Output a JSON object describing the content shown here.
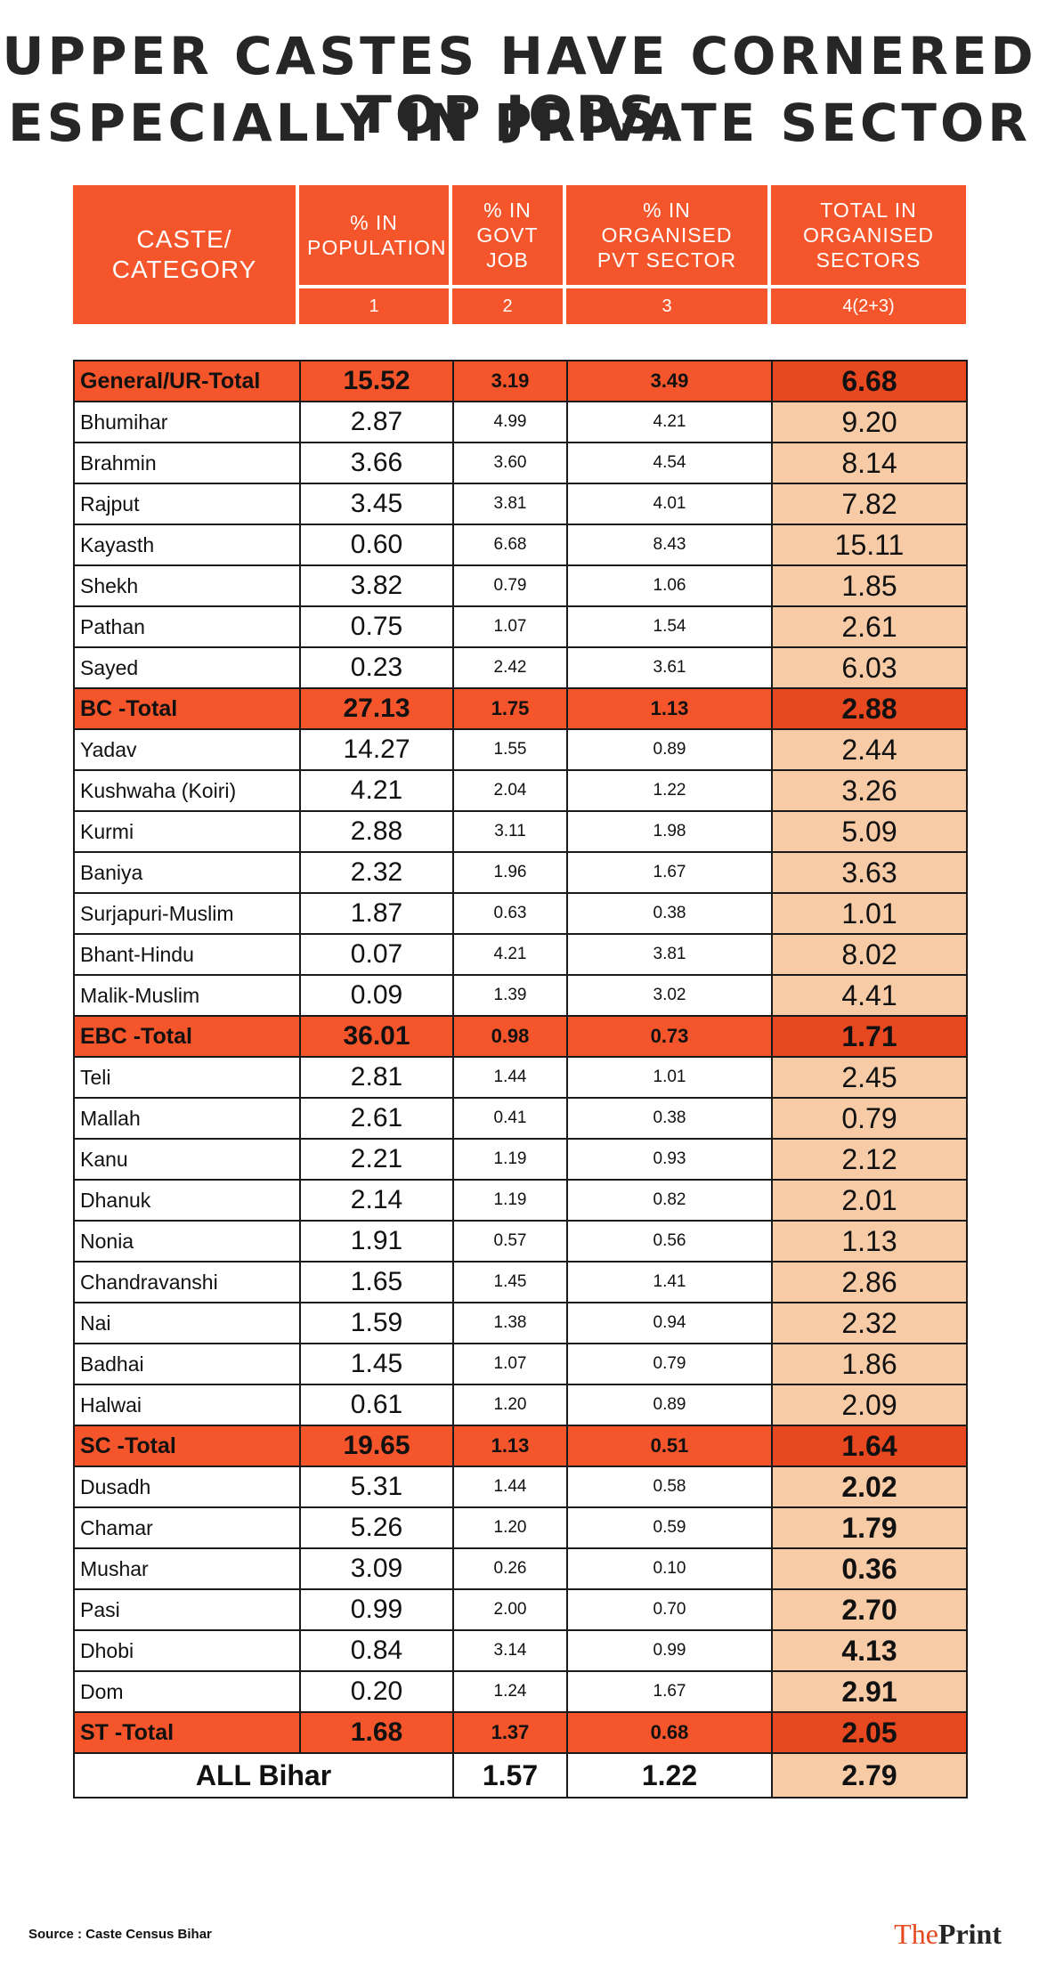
{
  "title": [
    "UPPER CASTES HAVE CORNERED TOP JOBS,",
    "ESPECIALLY IN PRIVATE SECTOR"
  ],
  "colors": {
    "header": "#f4552a",
    "total_row": "#f4552a",
    "total_cell": "#e8481f",
    "peach": "#f8cba7"
  },
  "chart_data": {
    "type": "table",
    "columns": [
      {
        "label": "CASTE/ CATEGORY",
        "number": ""
      },
      {
        "label": "% IN POPULATION",
        "number": "1"
      },
      {
        "label": "% IN GOVT JOB",
        "number": "2"
      },
      {
        "label": "% IN ORGANISED PVT SECTOR",
        "number": "3"
      },
      {
        "label": "TOTAL IN ORGANISED SECTORS",
        "number": "4(2+3)"
      }
    ],
    "rows": [
      {
        "name": "General/UR-Total",
        "pop": "15.52",
        "gov": "3.19",
        "pvt": "3.49",
        "tot": "6.68",
        "kind": "total"
      },
      {
        "name": "Bhumihar",
        "pop": "2.87",
        "gov": "4.99",
        "pvt": "4.21",
        "tot": "9.20"
      },
      {
        "name": "Brahmin",
        "pop": "3.66",
        "gov": "3.60",
        "pvt": "4.54",
        "tot": "8.14"
      },
      {
        "name": "Rajput",
        "pop": "3.45",
        "gov": "3.81",
        "pvt": "4.01",
        "tot": "7.82"
      },
      {
        "name": "Kayasth",
        "pop": "0.60",
        "gov": "6.68",
        "pvt": "8.43",
        "tot": "15.11"
      },
      {
        "name": "Shekh",
        "pop": "3.82",
        "gov": "0.79",
        "pvt": "1.06",
        "tot": "1.85"
      },
      {
        "name": "Pathan",
        "pop": "0.75",
        "gov": "1.07",
        "pvt": "1.54",
        "tot": "2.61"
      },
      {
        "name": "Sayed",
        "pop": "0.23",
        "gov": "2.42",
        "pvt": "3.61",
        "tot": "6.03"
      },
      {
        "name": "BC -Total",
        "pop": "27.13",
        "gov": "1.75",
        "pvt": "1.13",
        "tot": "2.88",
        "kind": "total"
      },
      {
        "name": "Yadav",
        "pop": "14.27",
        "gov": "1.55",
        "pvt": "0.89",
        "tot": "2.44"
      },
      {
        "name": "Kushwaha (Koiri)",
        "pop": "4.21",
        "gov": "2.04",
        "pvt": "1.22",
        "tot": "3.26"
      },
      {
        "name": "Kurmi",
        "pop": "2.88",
        "gov": "3.11",
        "pvt": "1.98",
        "tot": "5.09"
      },
      {
        "name": "Baniya",
        "pop": "2.32",
        "gov": "1.96",
        "pvt": "1.67",
        "tot": "3.63"
      },
      {
        "name": "Surjapuri-Muslim",
        "pop": "1.87",
        "gov": "0.63",
        "pvt": "0.38",
        "tot": "1.01"
      },
      {
        "name": "Bhant-Hindu",
        "pop": "0.07",
        "gov": "4.21",
        "pvt": "3.81",
        "tot": "8.02"
      },
      {
        "name": "Malik-Muslim",
        "pop": "0.09",
        "gov": "1.39",
        "pvt": "3.02",
        "tot": "4.41"
      },
      {
        "name": "EBC -Total",
        "pop": "36.01",
        "gov": "0.98",
        "pvt": "0.73",
        "tot": "1.71",
        "kind": "total"
      },
      {
        "name": "Teli",
        "pop": "2.81",
        "gov": "1.44",
        "pvt": "1.01",
        "tot": "2.45"
      },
      {
        "name": "Mallah",
        "pop": "2.61",
        "gov": "0.41",
        "pvt": "0.38",
        "tot": "0.79"
      },
      {
        "name": "Kanu",
        "pop": "2.21",
        "gov": "1.19",
        "pvt": "0.93",
        "tot": "2.12"
      },
      {
        "name": "Dhanuk",
        "pop": "2.14",
        "gov": "1.19",
        "pvt": "0.82",
        "tot": "2.01"
      },
      {
        "name": "Nonia",
        "pop": "1.91",
        "gov": "0.57",
        "pvt": "0.56",
        "tot": "1.13"
      },
      {
        "name": "Chandravanshi",
        "pop": "1.65",
        "gov": "1.45",
        "pvt": "1.41",
        "tot": "2.86"
      },
      {
        "name": "Nai",
        "pop": "1.59",
        "gov": "1.38",
        "pvt": "0.94",
        "tot": "2.32"
      },
      {
        "name": "Badhai",
        "pop": "1.45",
        "gov": "1.07",
        "pvt": "0.79",
        "tot": "1.86"
      },
      {
        "name": "Halwai",
        "pop": "0.61",
        "gov": "1.20",
        "pvt": "0.89",
        "tot": "2.09"
      },
      {
        "name": "SC -Total",
        "pop": "19.65",
        "gov": "1.13",
        "pvt": "0.51",
        "tot": "1.64",
        "kind": "total"
      },
      {
        "name": "Dusadh",
        "pop": "5.31",
        "gov": "1.44",
        "pvt": "0.58",
        "tot": "2.02",
        "kind": "sc"
      },
      {
        "name": "Chamar",
        "pop": "5.26",
        "gov": "1.20",
        "pvt": "0.59",
        "tot": "1.79",
        "kind": "sc"
      },
      {
        "name": "Mushar",
        "pop": "3.09",
        "gov": "0.26",
        "pvt": "0.10",
        "tot": "0.36",
        "kind": "sc"
      },
      {
        "name": "Pasi",
        "pop": "0.99",
        "gov": "2.00",
        "pvt": "0.70",
        "tot": "2.70",
        "kind": "sc"
      },
      {
        "name": "Dhobi",
        "pop": "0.84",
        "gov": "3.14",
        "pvt": "0.99",
        "tot": "4.13",
        "kind": "sc"
      },
      {
        "name": "Dom",
        "pop": "0.20",
        "gov": "1.24",
        "pvt": "1.67",
        "tot": "2.91",
        "kind": "sc"
      },
      {
        "name": "ST -Total",
        "pop": "1.68",
        "gov": "1.37",
        "pvt": "0.68",
        "tot": "2.05",
        "kind": "total"
      },
      {
        "name": "ALL Bihar",
        "pop": "",
        "gov": "1.57",
        "pvt": "1.22",
        "tot": "2.79",
        "kind": "all"
      }
    ]
  },
  "footer": {
    "source": "Source : Caste Census Bihar",
    "brand_a": "The",
    "brand_b": "Print"
  }
}
